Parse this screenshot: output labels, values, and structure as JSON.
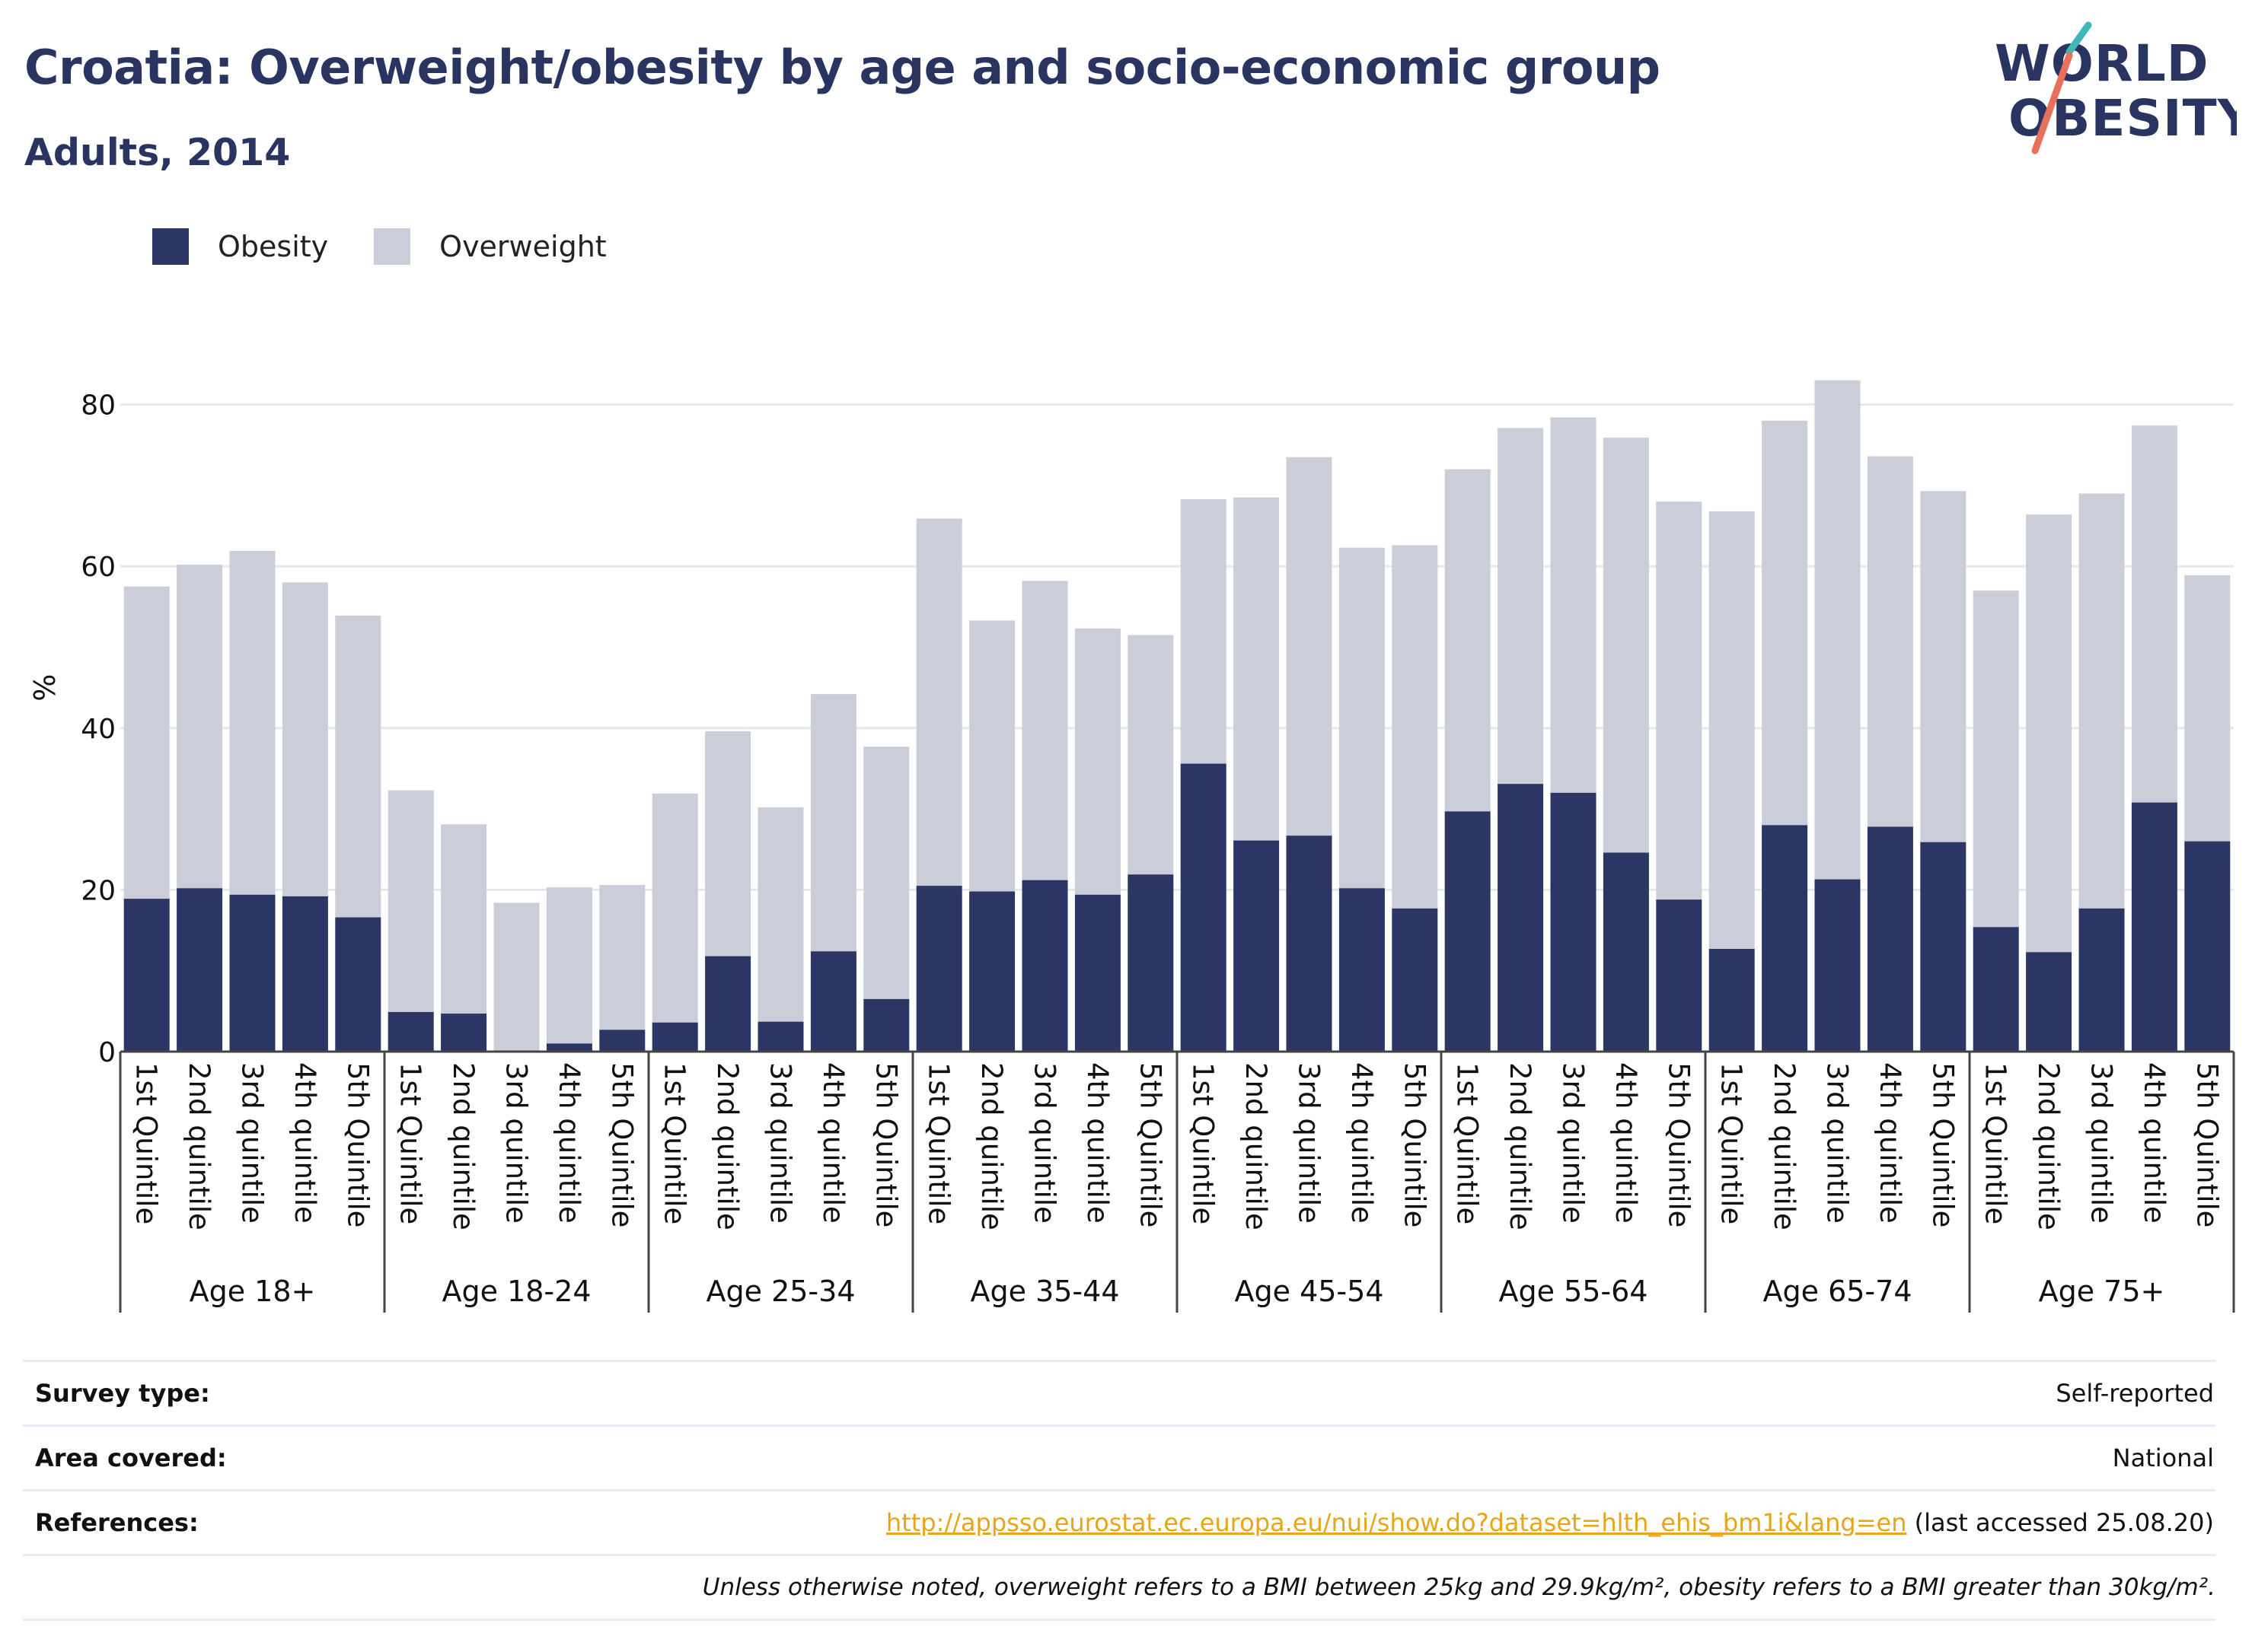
{
  "header": {
    "title": "Croatia: Overweight/obesity by age and socio-economic group",
    "subtitle": "Adults, 2014"
  },
  "logo": {
    "line1": "WORLD",
    "line2": "OBESITY"
  },
  "colors": {
    "obesity": "#2b3664",
    "overweight": "#cbcdd9",
    "grid": "#e6e8ee",
    "text": "#2a3460",
    "link": "#e8a51a",
    "logo_teal": "#3fb8b6",
    "logo_coral": "#e8715c"
  },
  "legend": {
    "obesity_label": "Obesity",
    "overweight_label": "Overweight"
  },
  "chart_data": {
    "type": "bar",
    "stacked": true,
    "ylabel": "%",
    "ylim": [
      0,
      90
    ],
    "yticks": [
      0,
      20,
      40,
      60,
      80
    ],
    "grid": true,
    "legend_position": "top-left",
    "groups": [
      {
        "name": "Age 18+",
        "categories": [
          "1st Quintile",
          "2nd quintile",
          "3rd quintile",
          "4th quintile",
          "5th Quintile"
        ],
        "obesity": [
          18.9,
          20.2,
          19.4,
          19.2,
          16.6
        ],
        "total": [
          57.5,
          60.2,
          61.9,
          58.0,
          53.9
        ]
      },
      {
        "name": "Age 18-24",
        "categories": [
          "1st Quintile",
          "2nd quintile",
          "3rd quintile",
          "4th quintile",
          "5th Quintile"
        ],
        "obesity": [
          4.9,
          4.7,
          0,
          1.0,
          2.7
        ],
        "total": [
          32.3,
          28.1,
          18.4,
          20.3,
          20.6
        ]
      },
      {
        "name": "Age 25-34",
        "categories": [
          "1st Quintile",
          "2nd quintile",
          "3rd quintile",
          "4th quintile",
          "5th Quintile"
        ],
        "obesity": [
          3.6,
          11.8,
          3.7,
          12.4,
          6.5
        ],
        "total": [
          31.9,
          39.6,
          30.2,
          44.2,
          37.7
        ]
      },
      {
        "name": "Age 35-44",
        "categories": [
          "1st Quintile",
          "2nd quintile",
          "3rd quintile",
          "4th quintile",
          "5th Quintile"
        ],
        "obesity": [
          20.5,
          19.8,
          21.2,
          19.4,
          21.9
        ],
        "total": [
          65.9,
          53.3,
          58.2,
          52.3,
          51.5
        ]
      },
      {
        "name": "Age 45-54",
        "categories": [
          "1st Quintile",
          "2nd quintile",
          "3rd quintile",
          "4th quintile",
          "5th Quintile"
        ],
        "obesity": [
          35.6,
          26.1,
          26.7,
          20.2,
          17.7
        ],
        "total": [
          68.3,
          68.5,
          73.5,
          62.3,
          62.6
        ]
      },
      {
        "name": "Age 55-64",
        "categories": [
          "1st Quintile",
          "2nd quintile",
          "3rd quintile",
          "4th quintile",
          "5th Quintile"
        ],
        "obesity": [
          29.7,
          33.1,
          32.0,
          24.6,
          18.8
        ],
        "total": [
          72.0,
          77.1,
          78.4,
          75.9,
          68.0
        ]
      },
      {
        "name": "Age 65-74",
        "categories": [
          "1st Quintile",
          "2nd quintile",
          "3rd quintile",
          "4th quintile",
          "5th Quintile"
        ],
        "obesity": [
          12.7,
          28.0,
          21.3,
          27.8,
          25.9
        ],
        "total": [
          66.8,
          78.0,
          83.0,
          73.6,
          69.3
        ]
      },
      {
        "name": "Age 75+",
        "categories": [
          "1st Quintile",
          "2nd quintile",
          "3rd quintile",
          "4th quintile",
          "5th Quintile"
        ],
        "obesity": [
          15.4,
          12.3,
          17.7,
          30.8,
          26.0
        ],
        "total": [
          57.0,
          66.4,
          69.0,
          77.4,
          58.9
        ]
      }
    ]
  },
  "meta": {
    "survey_label": "Survey type:",
    "survey_value": "Self-reported",
    "area_label": "Area covered:",
    "area_value": "National",
    "references_label": "References:",
    "references_link": "http://appsso.eurostat.ec.europa.eu/nui/show.do?dataset=hlth_ehis_bm1i&lang=en",
    "references_suffix": " (last accessed 25.08.20)",
    "note": "Unless otherwise noted, overweight refers to a BMI between 25kg and 29.9kg/m², obesity refers to a BMI greater than 30kg/m²."
  }
}
